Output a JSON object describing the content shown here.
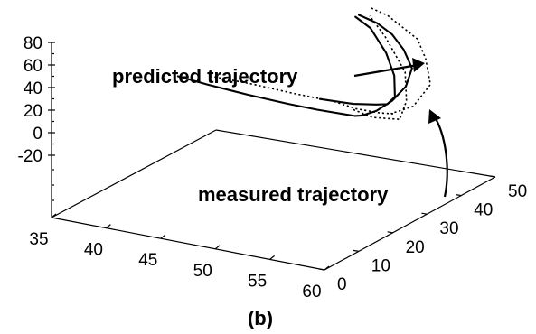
{
  "chart_data": {
    "type": "line3d",
    "caption": "(b)",
    "axes": {
      "x": {
        "ticks": [
          35,
          40,
          45,
          50,
          55,
          60
        ],
        "range": [
          35,
          60
        ]
      },
      "y": {
        "ticks": [
          0,
          10,
          20,
          30,
          40,
          50
        ],
        "range": [
          0,
          50
        ]
      },
      "z": {
        "ticks": [
          -20,
          0,
          20,
          40,
          60,
          80
        ],
        "range": [
          -20,
          80
        ]
      }
    },
    "grid": false,
    "series": [
      {
        "name": "predicted trajectory",
        "style": "solid",
        "points": [
          [
            35,
            37,
            -11
          ],
          [
            38,
            36,
            -11
          ],
          [
            42,
            35,
            -11
          ],
          [
            46,
            34,
            -10
          ],
          [
            49,
            33,
            -8
          ],
          [
            52,
            31,
            -3
          ],
          [
            54,
            28,
            4
          ],
          [
            55.5,
            25,
            12
          ],
          [
            56.5,
            22,
            19
          ],
          [
            57.5,
            20,
            25
          ],
          [
            58.5,
            20,
            30
          ],
          [
            59,
            23,
            35
          ],
          [
            59,
            27,
            41
          ],
          [
            58,
            32,
            47
          ],
          [
            56,
            36,
            53
          ],
          [
            54,
            39,
            58
          ],
          [
            52,
            41,
            61
          ],
          [
            50,
            42,
            63
          ]
        ]
      },
      {
        "name": "measured trajectory",
        "style": "dotted",
        "points": [
          [
            37,
            40,
            -12
          ],
          [
            41,
            40,
            -12
          ],
          [
            45,
            39,
            -11
          ],
          [
            49,
            38,
            -9
          ],
          [
            52,
            35,
            -5
          ],
          [
            55,
            32,
            2
          ],
          [
            57,
            30,
            8
          ],
          [
            58,
            26,
            17
          ],
          [
            60,
            26,
            27
          ],
          [
            60,
            31,
            38
          ],
          [
            58,
            36,
            49
          ],
          [
            56,
            40,
            56
          ],
          [
            52,
            44,
            63
          ],
          [
            50,
            45,
            65
          ]
        ]
      },
      {
        "name": "",
        "style": "dotted",
        "points": [
          [
            52,
            34,
            -4
          ],
          [
            56,
            27,
            8
          ],
          [
            60,
            22,
            22
          ],
          [
            60,
            24,
            35
          ],
          [
            58,
            30,
            47
          ],
          [
            54,
            37,
            59
          ],
          [
            51,
            42,
            64
          ]
        ]
      },
      {
        "name": "",
        "style": "solid",
        "points": [
          [
            48,
            37,
            -7
          ],
          [
            52,
            34,
            1
          ],
          [
            55,
            31,
            11
          ],
          [
            57,
            28,
            20
          ],
          [
            58,
            27,
            30
          ],
          [
            57,
            30,
            42
          ],
          [
            55,
            34,
            52
          ],
          [
            52,
            39,
            60
          ],
          [
            50,
            41,
            63
          ]
        ]
      }
    ],
    "annotations": [
      {
        "text": "predicted trajectory",
        "points_to": "predicted trajectory"
      },
      {
        "text": "measured trajectory",
        "points_to": "measured trajectory"
      }
    ]
  }
}
